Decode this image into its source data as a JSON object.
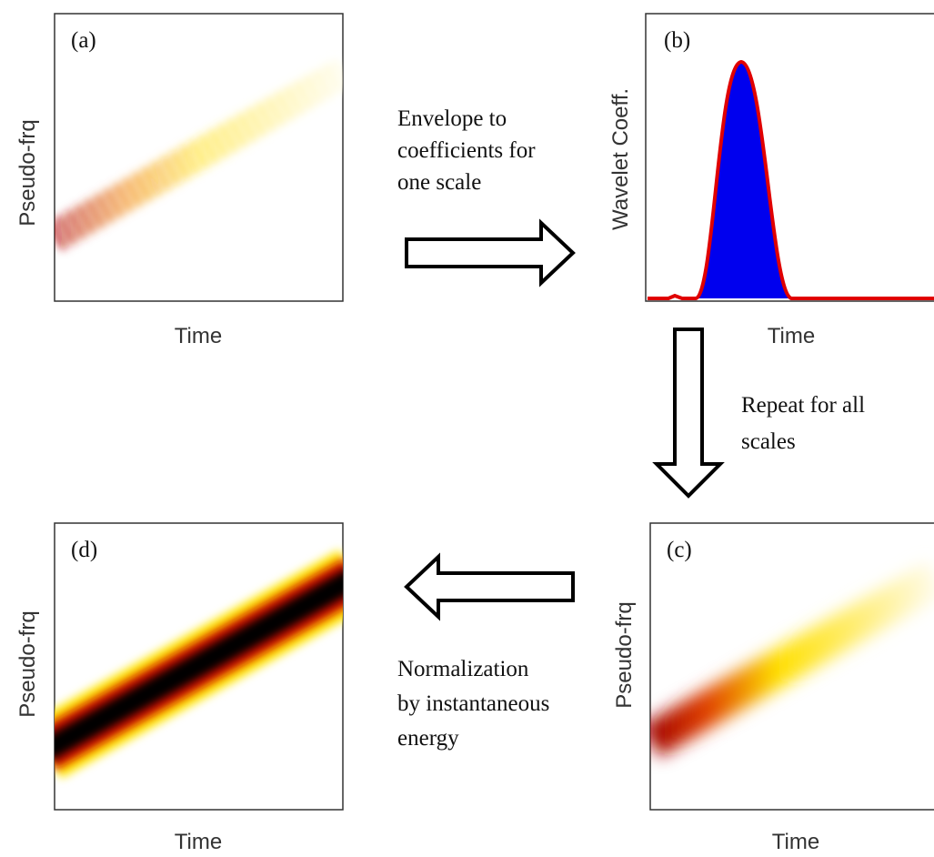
{
  "panels": [
    {
      "label": "(a)",
      "y_label": "Pseudo-frq",
      "x_label": "Time"
    },
    {
      "label": "(b)",
      "y_label": "Wavelet Coeff.",
      "x_label": "Time"
    },
    {
      "label": "(c)",
      "y_label": "Pseudo-frq",
      "x_label": "Time"
    },
    {
      "label": "(d)",
      "y_label": "Pseudo-frq",
      "x_label": "Time"
    }
  ],
  "steps": [
    {
      "lines": [
        "Envelope to",
        "coefficients for",
        "one scale"
      ]
    },
    {
      "lines": [
        "Repeat for all",
        "scales"
      ]
    },
    {
      "lines": [
        "Normalization",
        "by instantaneous",
        "energy"
      ]
    }
  ]
}
